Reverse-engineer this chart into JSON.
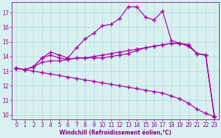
{
  "xlabel": "Windchill (Refroidissement éolien,°C)",
  "x": [
    0,
    1,
    2,
    3,
    4,
    5,
    6,
    7,
    8,
    9,
    10,
    11,
    12,
    13,
    14,
    15,
    16,
    17,
    18,
    19,
    20,
    21,
    22,
    23
  ],
  "line1": [
    13.2,
    13.1,
    13.3,
    13.9,
    14.1,
    13.9,
    13.8,
    13.9,
    13.9,
    14.0,
    14.1,
    14.2,
    14.3,
    14.4,
    14.5,
    14.6,
    14.7,
    14.8,
    14.9,
    14.9,
    14.8,
    14.2,
    14.1,
    9.9
  ],
  "line2": [
    13.2,
    13.1,
    13.3,
    13.9,
    14.3,
    14.1,
    13.9,
    14.6,
    15.2,
    15.6,
    16.1,
    16.2,
    16.6,
    17.4,
    17.4,
    16.7,
    16.5,
    17.1,
    15.1,
    14.9,
    14.7,
    14.2,
    14.1,
    9.9
  ],
  "line3": [
    13.2,
    13.1,
    13.3,
    13.6,
    13.7,
    13.7,
    13.8,
    13.9,
    13.9,
    13.9,
    13.9,
    14.0,
    14.1,
    14.2,
    14.4,
    14.6,
    14.7,
    14.8,
    14.9,
    14.9,
    14.8,
    14.2,
    14.1,
    9.9
  ],
  "line4": [
    13.2,
    13.1,
    13.0,
    12.9,
    12.8,
    12.7,
    12.6,
    12.5,
    12.4,
    12.3,
    12.2,
    12.1,
    12.0,
    11.9,
    11.8,
    11.7,
    11.6,
    11.5,
    11.3,
    11.1,
    10.8,
    10.4,
    10.1,
    9.9
  ],
  "line_color": "#aa00aa",
  "bg_color": "#d8f0f0",
  "grid_color": "#b0d8d8",
  "tick_color": "#880088",
  "ylim": [
    9.7,
    17.7
  ],
  "xlim": [
    -0.5,
    23.5
  ],
  "yticks": [
    10,
    11,
    12,
    13,
    14,
    15,
    16,
    17
  ],
  "xticks": [
    0,
    1,
    2,
    3,
    4,
    5,
    6,
    7,
    8,
    9,
    10,
    11,
    12,
    13,
    14,
    15,
    16,
    17,
    18,
    19,
    20,
    21,
    22,
    23
  ]
}
